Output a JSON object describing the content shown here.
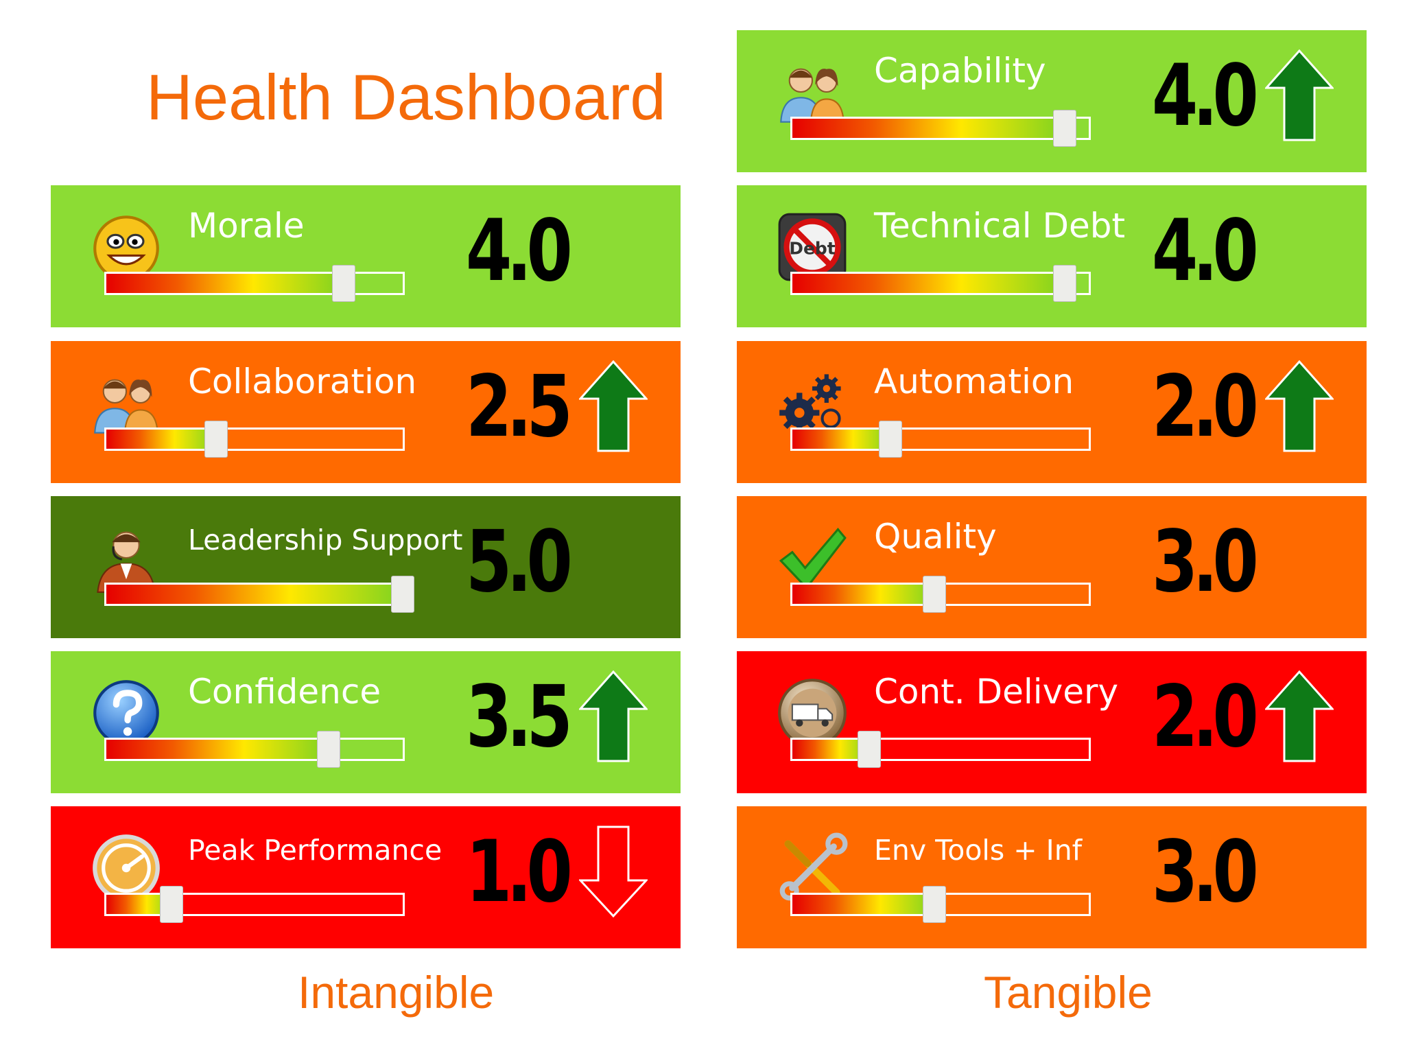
{
  "title": "Health Dashboard",
  "columns": {
    "intangible": "Intangible",
    "tangible": "Tangible"
  },
  "colors": {
    "light_green": "#8cdc34",
    "dark_green": "#4a7a0b",
    "orange": "#ff6a00",
    "red": "#ff0000",
    "title_orange": "#f46a0a",
    "arrow_green": "#0e7a17"
  },
  "intangible": [
    {
      "label": "Morale",
      "score": "4.0",
      "level": 0.8,
      "bg": "light_green",
      "icon": "smiley-icon",
      "trend": "none"
    },
    {
      "label": "Collaboration",
      "score": "2.5",
      "level": 0.37,
      "bg": "orange",
      "icon": "people-icon",
      "trend": "up"
    },
    {
      "label": "Leadership Support",
      "score": "5.0",
      "level": 1.0,
      "bg": "dark_green",
      "icon": "leader-icon",
      "trend": "none"
    },
    {
      "label": "Confidence",
      "score": "3.5",
      "level": 0.75,
      "bg": "light_green",
      "icon": "question-icon",
      "trend": "up"
    },
    {
      "label": "Peak Performance",
      "score": "1.0",
      "level": 0.22,
      "bg": "red",
      "icon": "gauge-icon",
      "trend": "down"
    }
  ],
  "tangible": [
    {
      "label": "Capability",
      "score": "4.0",
      "level": 0.92,
      "bg": "light_green",
      "icon": "people-icon",
      "trend": "up"
    },
    {
      "label": "Technical Debt",
      "score": "4.0",
      "level": 0.92,
      "bg": "light_green",
      "icon": "no-debt-icon",
      "icon_text": "Debt",
      "trend": "none"
    },
    {
      "label": "Automation",
      "score": "2.0",
      "level": 0.33,
      "bg": "orange",
      "icon": "gears-icon",
      "trend": "up"
    },
    {
      "label": "Quality",
      "score": "3.0",
      "level": 0.48,
      "bg": "orange",
      "icon": "checkmark-icon",
      "trend": "none"
    },
    {
      "label": "Cont. Delivery",
      "score": "2.0",
      "level": 0.26,
      "bg": "red",
      "icon": "truck-icon",
      "trend": "up"
    },
    {
      "label": "Env Tools + Inf",
      "score": "3.0",
      "level": 0.48,
      "bg": "orange",
      "icon": "tools-icon",
      "trend": "none"
    }
  ]
}
